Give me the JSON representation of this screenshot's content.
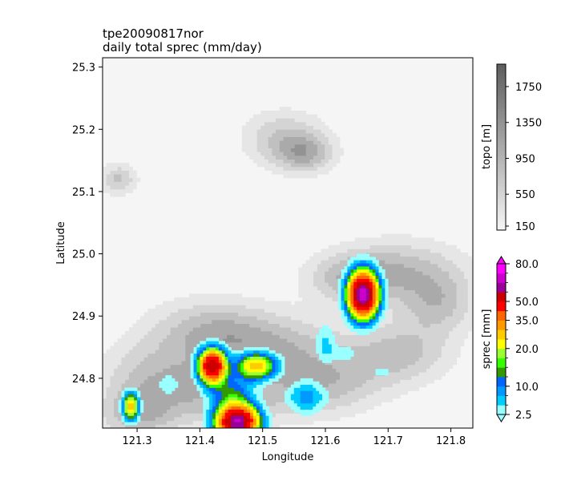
{
  "chart_data": {
    "type": "heatmap",
    "title": "tpe20090817nor",
    "subtitle": "daily total sprec (mm/day)",
    "xlabel": "Longitude",
    "ylabel": "Latitude",
    "xlim": [
      121.245,
      121.835
    ],
    "ylim": [
      24.72,
      25.315
    ],
    "xticks": [
      121.3,
      121.4,
      121.5,
      121.6,
      121.7,
      121.8
    ],
    "xtick_labels": [
      "121.3",
      "121.4",
      "121.5",
      "121.6",
      "121.7",
      "121.8"
    ],
    "yticks": [
      24.8,
      24.9,
      25.0,
      25.1,
      25.2,
      25.3
    ],
    "ytick_labels": [
      "24.8",
      "24.9",
      "25.0",
      "25.1",
      "25.2",
      "25.3"
    ],
    "grid": false,
    "topo_colorbar": {
      "label": "topo [m]",
      "range": [
        150,
        2000
      ],
      "ticks": [
        150,
        550,
        950,
        1350,
        1750
      ],
      "tick_labels": [
        "150",
        "550",
        "950",
        "1350",
        "1750"
      ],
      "colors": [
        "#f5f5f5",
        "#e6e6e6",
        "#d4d4d4",
        "#c0c0c0",
        "#aaaaaa",
        "#939393",
        "#7c7c7c",
        "#656565"
      ]
    },
    "sprec_colorbar": {
      "label": "sprec [mm]",
      "levels": [
        2.5,
        5,
        7.5,
        10,
        12.5,
        15,
        17.5,
        20,
        25,
        30,
        35,
        40,
        50,
        60,
        70,
        80
      ],
      "tick_labels": [
        "2.5",
        "10.0",
        "20.0",
        "35.0",
        "50.0",
        "80.0"
      ],
      "colors": [
        "#99ffff",
        "#00ccff",
        "#0099ff",
        "#0066ff",
        "#339900",
        "#33ff00",
        "#99ff33",
        "#ffff00",
        "#ffcc00",
        "#ff9900",
        "#ff6600",
        "#ff0000",
        "#cc0000",
        "#990099",
        "#cc00cc",
        "#ff00ff"
      ],
      "extend": "both"
    },
    "topo_highlands": [
      {
        "lon": 121.535,
        "lat": 25.185,
        "rlon": 0.065,
        "rlat": 0.045
      },
      {
        "lon": 121.57,
        "lat": 25.16,
        "rlon": 0.045,
        "rlat": 0.03
      },
      {
        "lon": 121.72,
        "lat": 24.975,
        "rlon": 0.1,
        "rlat": 0.05
      },
      {
        "lon": 121.64,
        "lat": 24.96,
        "rlon": 0.07,
        "rlat": 0.04
      },
      {
        "lon": 121.78,
        "lat": 24.92,
        "rlon": 0.06,
        "rlat": 0.05
      },
      {
        "lon": 121.42,
        "lat": 24.88,
        "rlon": 0.1,
        "rlat": 0.05
      },
      {
        "lon": 121.52,
        "lat": 24.85,
        "rlon": 0.12,
        "rlat": 0.05
      },
      {
        "lon": 121.33,
        "lat": 24.8,
        "rlon": 0.09,
        "rlat": 0.06
      },
      {
        "lon": 121.45,
        "lat": 24.77,
        "rlon": 0.1,
        "rlat": 0.05
      },
      {
        "lon": 121.6,
        "lat": 24.79,
        "rlon": 0.09,
        "rlat": 0.05
      },
      {
        "lon": 121.72,
        "lat": 24.84,
        "rlon": 0.08,
        "rlat": 0.05
      },
      {
        "lon": 121.3,
        "lat": 24.74,
        "rlon": 0.06,
        "rlat": 0.04
      },
      {
        "lon": 121.27,
        "lat": 25.12,
        "rlon": 0.03,
        "rlat": 0.025
      }
    ],
    "sprec_cells": [
      {
        "lon": 121.66,
        "lat": 24.935,
        "peak": 75,
        "rlon": 0.022,
        "rlat": 0.035
      },
      {
        "lon": 121.42,
        "lat": 24.82,
        "peak": 60,
        "rlon": 0.02,
        "rlat": 0.025
      },
      {
        "lon": 121.46,
        "lat": 24.73,
        "peak": 70,
        "rlon": 0.03,
        "rlat": 0.025
      },
      {
        "lon": 121.49,
        "lat": 24.82,
        "peak": 28,
        "rlon": 0.03,
        "rlat": 0.02
      },
      {
        "lon": 121.29,
        "lat": 24.755,
        "peak": 30,
        "rlon": 0.012,
        "rlat": 0.02
      },
      {
        "lon": 121.45,
        "lat": 24.775,
        "peak": 12,
        "rlon": 0.035,
        "rlat": 0.03
      },
      {
        "lon": 121.57,
        "lat": 24.77,
        "peak": 9,
        "rlon": 0.03,
        "rlat": 0.025
      },
      {
        "lon": 121.6,
        "lat": 24.855,
        "peak": 6,
        "rlon": 0.015,
        "rlat": 0.03
      },
      {
        "lon": 121.63,
        "lat": 24.84,
        "peak": 4,
        "rlon": 0.02,
        "rlat": 0.015
      },
      {
        "lon": 121.69,
        "lat": 24.81,
        "peak": 4,
        "rlon": 0.015,
        "rlat": 0.01
      },
      {
        "lon": 121.35,
        "lat": 24.79,
        "peak": 4,
        "rlon": 0.02,
        "rlat": 0.02
      }
    ]
  }
}
